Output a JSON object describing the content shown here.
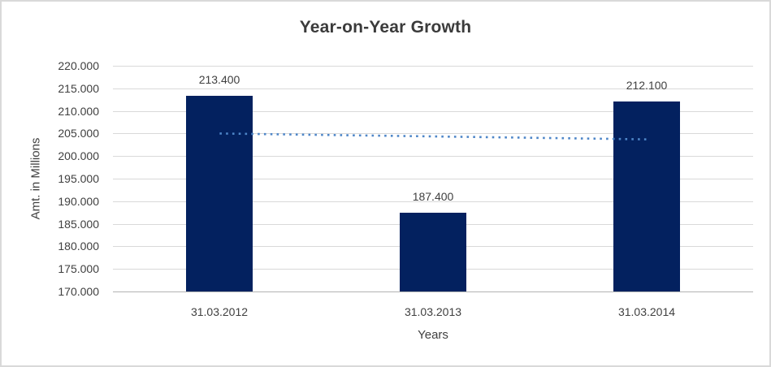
{
  "chart": {
    "title": "Year-on-Year Growth",
    "y_axis_title": "Amt. in Millions",
    "x_axis_title": "Years"
  },
  "chart_data": {
    "type": "bar",
    "title": "Year-on-Year Growth",
    "xlabel": "Years",
    "ylabel": "Amt. in Millions",
    "categories": [
      "31.03.2012",
      "31.03.2013",
      "31.03.2014"
    ],
    "values": [
      213400,
      187400,
      212100
    ],
    "bar_labels": [
      "213.400",
      "187.400",
      "212.100"
    ],
    "ylim": [
      170000,
      220000
    ],
    "ytick_step": 5000,
    "ytick_labels": [
      "220.000",
      "215.000",
      "210.000",
      "205.000",
      "200.000",
      "195.000",
      "190.000",
      "185.000",
      "180.000",
      "175.000",
      "170.000"
    ],
    "grid": true,
    "legend": "none",
    "bar_color": "#03215F",
    "gridline_color": "#d9d9d9",
    "axis_line_color": "#b3b3b3",
    "text_color": "#404040",
    "trendline": {
      "type": "linear",
      "style": "dotted",
      "color": "#4E86C8",
      "start_value": 205000,
      "end_value": 203700
    }
  }
}
